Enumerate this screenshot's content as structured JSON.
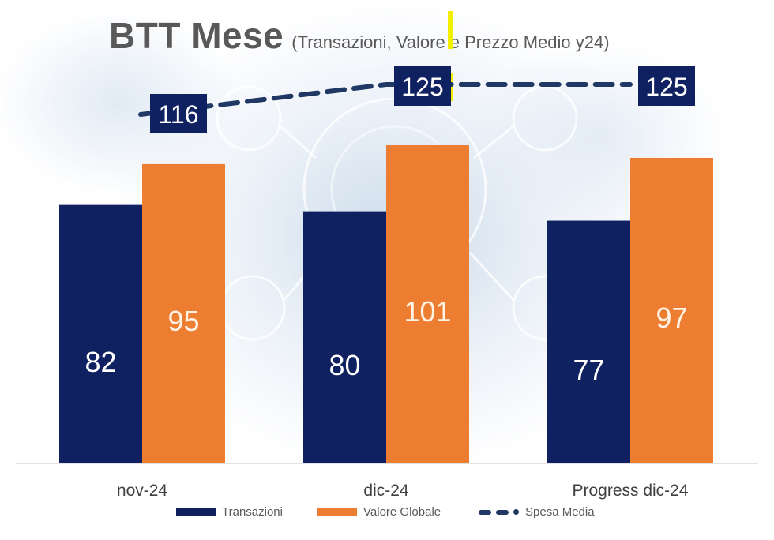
{
  "header": {
    "title": "BTT Mese",
    "subtitle": "(Transazioni, Valore e Prezzo Medio y24)"
  },
  "colors": {
    "transazioni": "#0f2160",
    "valore_globale": "#ed7d31",
    "spesa_media": "#1f3864",
    "label_box": "#0f2160",
    "axis_text": "#404040"
  },
  "chart_data": {
    "type": "bar",
    "categories": [
      "nov-24",
      "dic-24",
      "Progress dic-24"
    ],
    "series": [
      {
        "name": "Transazioni",
        "type": "bar",
        "values": [
          82,
          80,
          77
        ]
      },
      {
        "name": "Valore Globale",
        "type": "bar",
        "values": [
          95,
          101,
          97
        ]
      },
      {
        "name": "Spesa Media",
        "type": "line",
        "style": "dashed",
        "values": [
          116,
          125,
          125
        ]
      }
    ],
    "legend_position": "bottom",
    "grid": false
  },
  "legend": {
    "items": [
      {
        "label": "Transazioni",
        "kind": "bar",
        "color": "#0f2160"
      },
      {
        "label": "Valore Globale",
        "kind": "bar",
        "color": "#ed7d31"
      },
      {
        "label": "Spesa Media",
        "kind": "dashed-line",
        "color": "#1f3864"
      }
    ]
  }
}
